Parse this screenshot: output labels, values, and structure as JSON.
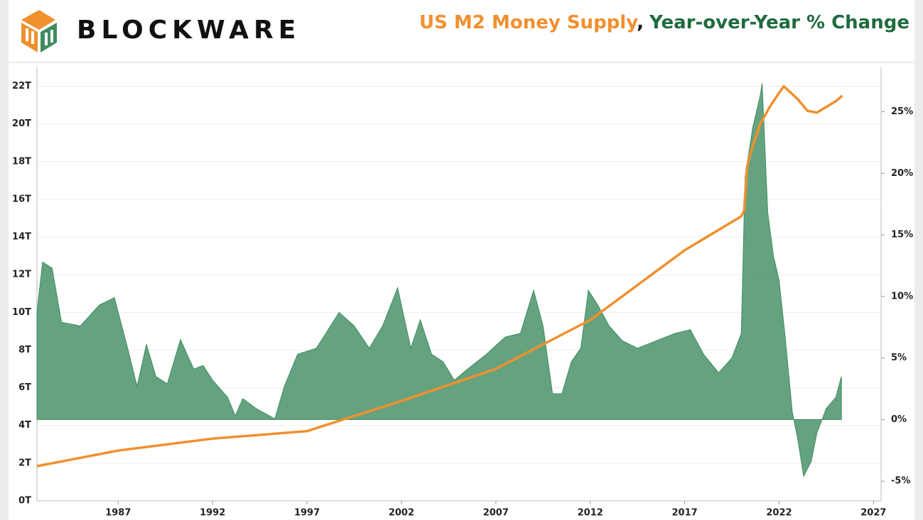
{
  "brand": "BLOCKWARE",
  "chart_data": {
    "type": "line-area",
    "title_separator": ",",
    "series": [
      {
        "name": "US M2 Money Supply",
        "color": "#f0902f",
        "axis": "y",
        "x": [
          1982.7,
          1987,
          1992,
          1997,
          2002,
          2007,
          2012,
          2017,
          2020.0,
          2020.15,
          2020.3,
          2020.5,
          2021,
          2021.5,
          2022.0,
          2022.25,
          2023.0,
          2023.5,
          2024,
          2024.5,
          2025,
          2025.35
        ],
        "values": [
          1.84,
          2.67,
          3.3,
          3.7,
          5.3,
          7.0,
          9.6,
          13.3,
          15.1,
          15.4,
          17.7,
          18.5,
          20.0,
          20.9,
          21.65,
          22.0,
          21.3,
          20.7,
          20.6,
          20.9,
          21.2,
          21.5
        ]
      },
      {
        "name": "Year-over-Year % Change",
        "color": "#3f8c60",
        "axis": "y2",
        "x": [
          1982.7,
          1983.0,
          1983.5,
          1984,
          1985,
          1986,
          1986.8,
          1987.5,
          1988.0,
          1988.5,
          1989,
          1989.6,
          1990.3,
          1991,
          1991.5,
          1992,
          1992.8,
          1993.2,
          1993.6,
          1994.3,
          1995.3,
          1995.8,
          1996.5,
          1997.5,
          1998,
          1998.7,
          1999.5,
          2000.3,
          2001.0,
          2001.8,
          2002.5,
          2003.0,
          2003.6,
          2004.2,
          2004.8,
          2005.5,
          2006.5,
          2007.5,
          2008.3,
          2009.0,
          2009.5,
          2010,
          2010.5,
          2011.0,
          2011.5,
          2011.9,
          2012.4,
          2013.0,
          2013.7,
          2014.5,
          2015.5,
          2016.5,
          2017.3,
          2018,
          2018.8,
          2019.5,
          2020.0,
          2020.2,
          2020.6,
          2021.0,
          2021.1,
          2021.4,
          2021.7,
          2022.0,
          2022.3,
          2022.7,
          2023.0,
          2023.3,
          2023.7,
          2024.0,
          2024.5,
          2025.0,
          2025.3
        ],
        "values": [
          8.7,
          12.8,
          12.3,
          7.9,
          7.6,
          9.3,
          9.9,
          5.8,
          2.7,
          6.1,
          3.5,
          2.9,
          6.5,
          4.1,
          4.4,
          3.2,
          1.8,
          0.3,
          1.7,
          0.9,
          0.06,
          2.7,
          5.3,
          5.8,
          7.0,
          8.7,
          7.6,
          5.8,
          7.6,
          10.7,
          5.8,
          8.1,
          5.3,
          4.7,
          3.2,
          4.1,
          5.3,
          6.7,
          7.0,
          10.5,
          7.6,
          2.1,
          2.1,
          4.7,
          5.8,
          10.5,
          9.3,
          7.6,
          6.4,
          5.8,
          6.4,
          7.0,
          7.3,
          5.3,
          3.8,
          5.0,
          7.0,
          19.7,
          23.7,
          26.3,
          27.3,
          16.8,
          13.3,
          11.3,
          7.0,
          0.6,
          -1.7,
          -4.6,
          -3.4,
          -1.1,
          0.9,
          1.8,
          3.5
        ]
      }
    ],
    "xlim": [
      1982.7,
      2027.4
    ],
    "xticks": [
      1987,
      1992,
      1997,
      2002,
      2007,
      2012,
      2017,
      2022,
      2027
    ],
    "ylim": [
      0,
      23
    ],
    "yticks": [
      {
        "value": 0,
        "label": "0T"
      },
      {
        "value": 2,
        "label": "2T"
      },
      {
        "value": 4,
        "label": "4T"
      },
      {
        "value": 6,
        "label": "6T"
      },
      {
        "value": 8,
        "label": "8T"
      },
      {
        "value": 10,
        "label": "10T"
      },
      {
        "value": 12,
        "label": "12T"
      },
      {
        "value": 14,
        "label": "14T"
      },
      {
        "value": 16,
        "label": "16T"
      },
      {
        "value": 18,
        "label": "18T"
      },
      {
        "value": 20,
        "label": "20T"
      },
      {
        "value": 22,
        "label": "22T"
      }
    ],
    "y2lim": [
      -6.6,
      28.6
    ],
    "y2ticks": [
      {
        "value": -5,
        "label": "-5%"
      },
      {
        "value": 0,
        "label": "0%"
      },
      {
        "value": 5,
        "label": "5%"
      },
      {
        "value": 10,
        "label": "10%"
      },
      {
        "value": 15,
        "label": "15%"
      },
      {
        "value": 20,
        "label": "20%"
      },
      {
        "value": 25,
        "label": "25%"
      }
    ],
    "grid": true
  }
}
